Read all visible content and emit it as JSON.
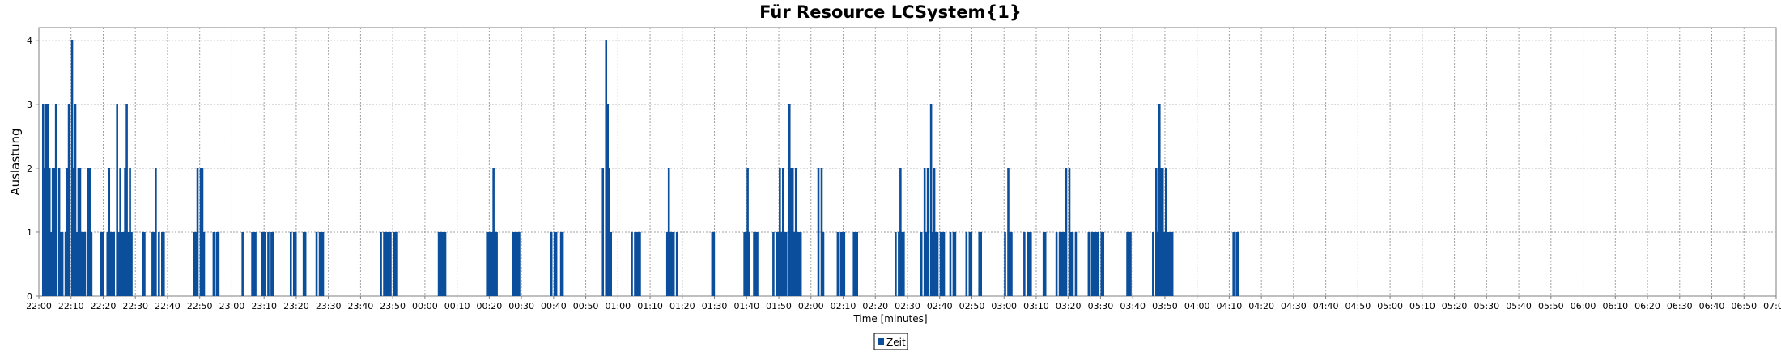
{
  "chart_data": {
    "type": "bar",
    "title": "Für Resource LCSystem{1}",
    "xlabel": "Time [minutes]",
    "ylabel": "Auslastung",
    "ylim": [
      0,
      4.2
    ],
    "yticks": [
      "0",
      "1",
      "2",
      "3",
      "4"
    ],
    "x_start": "22:00",
    "x_end": "07:00",
    "xticks": [
      "22:00",
      "22:10",
      "22:20",
      "22:30",
      "22:40",
      "22:50",
      "23:00",
      "23:10",
      "23:20",
      "23:30",
      "23:40",
      "23:50",
      "00:00",
      "00:10",
      "00:20",
      "00:30",
      "00:40",
      "00:50",
      "01:00",
      "01:10",
      "01:20",
      "01:30",
      "01:40",
      "01:50",
      "02:00",
      "02:10",
      "02:20",
      "02:30",
      "02:40",
      "02:50",
      "03:00",
      "03:10",
      "03:20",
      "03:30",
      "03:40",
      "03:50",
      "04:00",
      "04:10",
      "04:20",
      "04:30",
      "04:40",
      "04:50",
      "05:00",
      "05:10",
      "05:20",
      "05:30",
      "05:40",
      "05:50",
      "06:00",
      "06:10",
      "06:20",
      "06:30",
      "06:40",
      "06:50",
      "07:00"
    ],
    "grid": true,
    "legend_position": "bottom-center",
    "series": [
      {
        "name": "Zeit",
        "color": "#0b4f9c",
        "points": [
          [
            "22:01",
            3
          ],
          [
            "22:01",
            2
          ],
          [
            "22:02",
            3
          ],
          [
            "22:02",
            3
          ],
          [
            "22:03",
            2
          ],
          [
            "22:03",
            1
          ],
          [
            "22:04",
            2
          ],
          [
            "22:04",
            2
          ],
          [
            "22:05",
            3
          ],
          [
            "22:06",
            2
          ],
          [
            "22:06",
            1
          ],
          [
            "22:07",
            1
          ],
          [
            "22:08",
            1
          ],
          [
            "22:08",
            2
          ],
          [
            "22:09",
            3
          ],
          [
            "22:10",
            4
          ],
          [
            "22:10",
            2
          ],
          [
            "22:11",
            3
          ],
          [
            "22:11",
            1
          ],
          [
            "22:12",
            2
          ],
          [
            "22:12",
            2
          ],
          [
            "22:13",
            1
          ],
          [
            "22:13",
            1
          ],
          [
            "22:14",
            1
          ],
          [
            "22:15",
            2
          ],
          [
            "22:15",
            2
          ],
          [
            "22:16",
            1
          ],
          [
            "22:19",
            1
          ],
          [
            "22:19",
            1
          ],
          [
            "22:21",
            1
          ],
          [
            "22:21",
            2
          ],
          [
            "22:22",
            1
          ],
          [
            "22:22",
            1
          ],
          [
            "22:23",
            1
          ],
          [
            "22:24",
            3
          ],
          [
            "22:24",
            1
          ],
          [
            "22:25",
            2
          ],
          [
            "22:25",
            1
          ],
          [
            "22:26",
            1
          ],
          [
            "22:26",
            2
          ],
          [
            "22:27",
            3
          ],
          [
            "22:27",
            1
          ],
          [
            "22:28",
            2
          ],
          [
            "22:28",
            1
          ],
          [
            "22:32",
            1
          ],
          [
            "22:32",
            1
          ],
          [
            "22:35",
            1
          ],
          [
            "22:35",
            1
          ],
          [
            "22:36",
            2
          ],
          [
            "22:37",
            1
          ],
          [
            "22:38",
            1
          ],
          [
            "22:38",
            1
          ],
          [
            "22:48",
            1
          ],
          [
            "22:48",
            1
          ],
          [
            "22:49",
            2
          ],
          [
            "22:50",
            2
          ],
          [
            "22:50",
            2
          ],
          [
            "22:51",
            1
          ],
          [
            "22:54",
            1
          ],
          [
            "22:55",
            1
          ],
          [
            "22:55",
            1
          ],
          [
            "23:03",
            1
          ],
          [
            "23:06",
            1
          ],
          [
            "23:06",
            1
          ],
          [
            "23:07",
            1
          ],
          [
            "23:09",
            1
          ],
          [
            "23:09",
            1
          ],
          [
            "23:10",
            1
          ],
          [
            "23:11",
            1
          ],
          [
            "23:12",
            1
          ],
          [
            "23:12",
            1
          ],
          [
            "23:18",
            1
          ],
          [
            "23:19",
            1
          ],
          [
            "23:19",
            1
          ],
          [
            "23:22",
            1
          ],
          [
            "23:22",
            1
          ],
          [
            "23:26",
            1
          ],
          [
            "23:27",
            1
          ],
          [
            "23:27",
            1
          ],
          [
            "23:28",
            1
          ],
          [
            "23:46",
            1
          ],
          [
            "23:47",
            1
          ],
          [
            "23:47",
            1
          ],
          [
            "23:48",
            1
          ],
          [
            "23:48",
            1
          ],
          [
            "23:49",
            1
          ],
          [
            "23:50",
            1
          ],
          [
            "23:50",
            1
          ],
          [
            "23:51",
            1
          ],
          [
            "00:04",
            1
          ],
          [
            "00:04",
            1
          ],
          [
            "00:05",
            1
          ],
          [
            "00:05",
            1
          ],
          [
            "00:06",
            1
          ],
          [
            "00:19",
            1
          ],
          [
            "00:19",
            1
          ],
          [
            "00:20",
            1
          ],
          [
            "00:20",
            1
          ],
          [
            "00:21",
            2
          ],
          [
            "00:21",
            1
          ],
          [
            "00:22",
            1
          ],
          [
            "00:27",
            1
          ],
          [
            "00:27",
            1
          ],
          [
            "00:28",
            1
          ],
          [
            "00:28",
            1
          ],
          [
            "00:29",
            1
          ],
          [
            "00:39",
            1
          ],
          [
            "00:40",
            1
          ],
          [
            "00:40",
            1
          ],
          [
            "00:42",
            1
          ],
          [
            "00:42",
            1
          ],
          [
            "00:55",
            2
          ],
          [
            "00:56",
            4
          ],
          [
            "00:56",
            3
          ],
          [
            "00:57",
            2
          ],
          [
            "00:57",
            1
          ],
          [
            "01:04",
            1
          ],
          [
            "01:05",
            1
          ],
          [
            "01:05",
            1
          ],
          [
            "01:06",
            1
          ],
          [
            "01:06",
            1
          ],
          [
            "01:15",
            1
          ],
          [
            "01:15",
            2
          ],
          [
            "01:16",
            1
          ],
          [
            "01:16",
            1
          ],
          [
            "01:17",
            1
          ],
          [
            "01:18",
            1
          ],
          [
            "01:29",
            1
          ],
          [
            "01:29",
            1
          ],
          [
            "01:39",
            1
          ],
          [
            "01:39",
            1
          ],
          [
            "01:40",
            2
          ],
          [
            "01:40",
            1
          ],
          [
            "01:42",
            1
          ],
          [
            "01:42",
            1
          ],
          [
            "01:43",
            1
          ],
          [
            "01:48",
            1
          ],
          [
            "01:49",
            1
          ],
          [
            "01:49",
            1
          ],
          [
            "01:50",
            2
          ],
          [
            "01:50",
            1
          ],
          [
            "01:51",
            2
          ],
          [
            "01:51",
            1
          ],
          [
            "01:52",
            1
          ],
          [
            "01:53",
            3
          ],
          [
            "01:53",
            2
          ],
          [
            "01:54",
            2
          ],
          [
            "01:54",
            1
          ],
          [
            "01:55",
            2
          ],
          [
            "01:55",
            1
          ],
          [
            "01:56",
            1
          ],
          [
            "01:56",
            1
          ],
          [
            "02:02",
            2
          ],
          [
            "02:03",
            2
          ],
          [
            "02:03",
            1
          ],
          [
            "02:08",
            1
          ],
          [
            "02:09",
            1
          ],
          [
            "02:09",
            1
          ],
          [
            "02:10",
            1
          ],
          [
            "02:13",
            1
          ],
          [
            "02:13",
            1
          ],
          [
            "02:14",
            1
          ],
          [
            "02:26",
            1
          ],
          [
            "02:27",
            1
          ],
          [
            "02:27",
            2
          ],
          [
            "02:28",
            1
          ],
          [
            "02:28",
            1
          ],
          [
            "02:34",
            1
          ],
          [
            "02:35",
            2
          ],
          [
            "02:35",
            1
          ],
          [
            "02:36",
            2
          ],
          [
            "02:37",
            3
          ],
          [
            "02:37",
            1
          ],
          [
            "02:38",
            2
          ],
          [
            "02:38",
            1
          ],
          [
            "02:39",
            1
          ],
          [
            "02:40",
            1
          ],
          [
            "02:40",
            1
          ],
          [
            "02:41",
            1
          ],
          [
            "02:43",
            1
          ],
          [
            "02:44",
            1
          ],
          [
            "02:44",
            1
          ],
          [
            "02:48",
            1
          ],
          [
            "02:49",
            1
          ],
          [
            "02:49",
            1
          ],
          [
            "02:52",
            1
          ],
          [
            "02:52",
            1
          ],
          [
            "03:00",
            1
          ],
          [
            "03:01",
            2
          ],
          [
            "03:01",
            1
          ],
          [
            "03:02",
            1
          ],
          [
            "03:06",
            1
          ],
          [
            "03:07",
            1
          ],
          [
            "03:07",
            1
          ],
          [
            "03:08",
            1
          ],
          [
            "03:12",
            1
          ],
          [
            "03:12",
            1
          ],
          [
            "03:16",
            1
          ],
          [
            "03:17",
            1
          ],
          [
            "03:17",
            1
          ],
          [
            "03:18",
            1
          ],
          [
            "03:18",
            1
          ],
          [
            "03:19",
            2
          ],
          [
            "03:20",
            2
          ],
          [
            "03:20",
            1
          ],
          [
            "03:21",
            1
          ],
          [
            "03:22",
            1
          ],
          [
            "03:26",
            1
          ],
          [
            "03:27",
            1
          ],
          [
            "03:27",
            1
          ],
          [
            "03:28",
            1
          ],
          [
            "03:28",
            1
          ],
          [
            "03:29",
            1
          ],
          [
            "03:30",
            1
          ],
          [
            "03:30",
            1
          ],
          [
            "03:38",
            1
          ],
          [
            "03:38",
            1
          ],
          [
            "03:39",
            1
          ],
          [
            "03:46",
            1
          ],
          [
            "03:47",
            2
          ],
          [
            "03:47",
            1
          ],
          [
            "03:48",
            3
          ],
          [
            "03:48",
            2
          ],
          [
            "03:49",
            2
          ],
          [
            "03:49",
            1
          ],
          [
            "03:50",
            2
          ],
          [
            "03:50",
            1
          ],
          [
            "03:51",
            1
          ],
          [
            "03:51",
            1
          ],
          [
            "03:52",
            1
          ],
          [
            "04:11",
            1
          ],
          [
            "04:12",
            1
          ],
          [
            "04:12",
            1
          ]
        ]
      }
    ]
  }
}
